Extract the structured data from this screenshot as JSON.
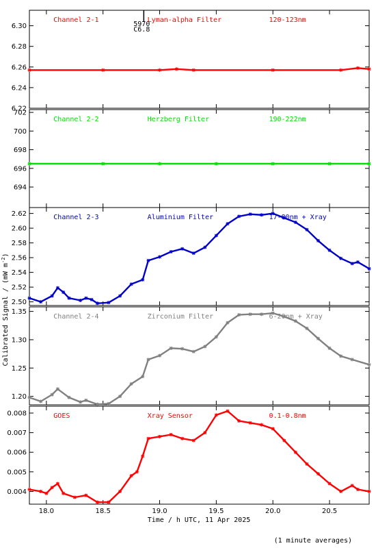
{
  "figure": {
    "y_axis_label": "Calibrated Signal / (mW m",
    "y_axis_label_sup": "-2",
    "y_axis_label_end": ")",
    "x_axis_label": "Time / h UTC, 11 Apr 2025",
    "footnote": "(1 minute averages)",
    "flare_marker": {
      "time_label": "5970",
      "class_label": "C6.8",
      "x": 18.86
    }
  },
  "colors": {
    "red": "#ff0000",
    "green": "#00e000",
    "blue": "#0000c8",
    "gray": "#808080",
    "axis": "#000000"
  },
  "chart_data": [
    {
      "type": "scatter",
      "channel": "Channel 2-1",
      "filter": "Lyman-alpha Filter",
      "band": "120-123nm",
      "color": "#ff0000",
      "xlim": [
        17.85,
        20.85
      ],
      "ylim": [
        6.22,
        6.315
      ],
      "yticks": [
        6.22,
        6.24,
        6.26,
        6.28,
        6.3
      ],
      "ytick_labels": [
        "6.22",
        "6.24",
        "6.26",
        "6.28",
        "6.30"
      ],
      "x": [
        17.85,
        18.5,
        19.0,
        19.15,
        19.3,
        20.0,
        20.6,
        20.75,
        20.85
      ],
      "y": [
        6.257,
        6.257,
        6.257,
        6.258,
        6.257,
        6.257,
        6.257,
        6.259,
        6.258
      ]
    },
    {
      "type": "scatter",
      "channel": "Channel 2-2",
      "filter": "Herzberg Filter",
      "band": "190-222nm",
      "color": "#00e000",
      "xlim": [
        17.85,
        20.85
      ],
      "ylim": [
        691.8,
        702.3
      ],
      "yticks": [
        694,
        696,
        698,
        700,
        702
      ],
      "ytick_labels": [
        "694",
        "696",
        "698",
        "700",
        "702"
      ],
      "x": [
        17.85,
        18.5,
        19.0,
        19.5,
        20.0,
        20.5,
        20.85
      ],
      "y": [
        696.5,
        696.5,
        696.5,
        696.5,
        696.5,
        696.5,
        696.5
      ]
    },
    {
      "type": "scatter",
      "channel": "Channel 2-3",
      "filter": "Aluminium Filter",
      "band": "17-80nm + Xray",
      "color": "#0000c8",
      "xlim": [
        17.85,
        20.85
      ],
      "ylim": [
        2.495,
        2.628
      ],
      "yticks": [
        2.5,
        2.52,
        2.54,
        2.56,
        2.58,
        2.6,
        2.62
      ],
      "ytick_labels": [
        "2.50",
        "2.52",
        "2.54",
        "2.56",
        "2.58",
        "2.60",
        "2.62"
      ],
      "x": [
        17.85,
        17.95,
        18.05,
        18.1,
        18.15,
        18.2,
        18.3,
        18.35,
        18.4,
        18.45,
        18.55,
        18.65,
        18.75,
        18.85,
        18.9,
        19.0,
        19.1,
        19.2,
        19.3,
        19.4,
        19.5,
        19.6,
        19.7,
        19.8,
        19.9,
        20.0,
        20.1,
        20.2,
        20.3,
        20.4,
        20.5,
        20.6,
        20.7,
        20.75,
        20.85
      ],
      "y": [
        2.505,
        2.5,
        2.508,
        2.519,
        2.513,
        2.505,
        2.502,
        2.505,
        2.503,
        2.498,
        2.499,
        2.508,
        2.524,
        2.53,
        2.556,
        2.561,
        2.568,
        2.572,
        2.566,
        2.574,
        2.59,
        2.606,
        2.616,
        2.619,
        2.618,
        2.62,
        2.614,
        2.608,
        2.598,
        2.583,
        2.57,
        2.559,
        2.552,
        2.554,
        2.545
      ]
    },
    {
      "type": "scatter",
      "channel": "Channel 2-4",
      "filter": "Zirconium Filter",
      "band": "6-20nm + Xray",
      "color": "#808080",
      "xlim": [
        17.85,
        20.85
      ],
      "ylim": [
        1.185,
        1.358
      ],
      "yticks": [
        1.2,
        1.25,
        1.3,
        1.35
      ],
      "ytick_labels": [
        "1.20",
        "1.25",
        "1.30",
        "1.35"
      ],
      "x": [
        17.85,
        17.95,
        18.05,
        18.1,
        18.2,
        18.3,
        18.35,
        18.45,
        18.55,
        18.65,
        18.75,
        18.85,
        18.9,
        19.0,
        19.1,
        19.2,
        19.3,
        19.4,
        19.5,
        19.6,
        19.7,
        19.8,
        19.9,
        20.0,
        20.1,
        20.2,
        20.3,
        20.4,
        20.5,
        20.6,
        20.7,
        20.85
      ],
      "y": [
        1.198,
        1.191,
        1.203,
        1.213,
        1.198,
        1.19,
        1.193,
        1.186,
        1.187,
        1.2,
        1.222,
        1.235,
        1.265,
        1.272,
        1.285,
        1.284,
        1.279,
        1.288,
        1.305,
        1.33,
        1.344,
        1.345,
        1.345,
        1.347,
        1.341,
        1.333,
        1.32,
        1.302,
        1.285,
        1.271,
        1.265,
        1.256
      ]
    },
    {
      "type": "scatter",
      "channel": "GOES",
      "filter": "Xray Sensor",
      "band": "0.1-0.8nm",
      "color": "#ff0000",
      "xlim": [
        17.85,
        20.85
      ],
      "ylim": [
        0.00335,
        0.00835
      ],
      "yticks": [
        0.004,
        0.005,
        0.006,
        0.007,
        0.008
      ],
      "ytick_labels": [
        "0.004",
        "0.005",
        "0.006",
        "0.007",
        "0.008"
      ],
      "x": [
        17.85,
        17.95,
        18.0,
        18.05,
        18.1,
        18.15,
        18.25,
        18.35,
        18.45,
        18.55,
        18.65,
        18.75,
        18.8,
        18.85,
        18.9,
        19.0,
        19.1,
        19.2,
        19.3,
        19.4,
        19.5,
        19.6,
        19.7,
        19.8,
        19.9,
        20.0,
        20.1,
        20.2,
        20.3,
        20.4,
        20.5,
        20.6,
        20.7,
        20.75,
        20.85
      ],
      "y": [
        0.0041,
        0.004,
        0.0039,
        0.0042,
        0.0044,
        0.0039,
        0.0037,
        0.0038,
        0.00345,
        0.00345,
        0.004,
        0.0048,
        0.005,
        0.0058,
        0.0067,
        0.0068,
        0.0069,
        0.0067,
        0.0066,
        0.007,
        0.0079,
        0.0081,
        0.0076,
        0.0075,
        0.0074,
        0.0072,
        0.0066,
        0.006,
        0.0054,
        0.0049,
        0.0044,
        0.004,
        0.0043,
        0.0041,
        0.004
      ]
    }
  ],
  "x_axis": {
    "xlim": [
      17.85,
      20.85
    ],
    "ticks": [
      18.0,
      18.5,
      19.0,
      19.5,
      20.0,
      20.5
    ],
    "tick_labels": [
      "18.0",
      "18.5",
      "19.0",
      "19.5",
      "20.0",
      "20.5"
    ]
  }
}
